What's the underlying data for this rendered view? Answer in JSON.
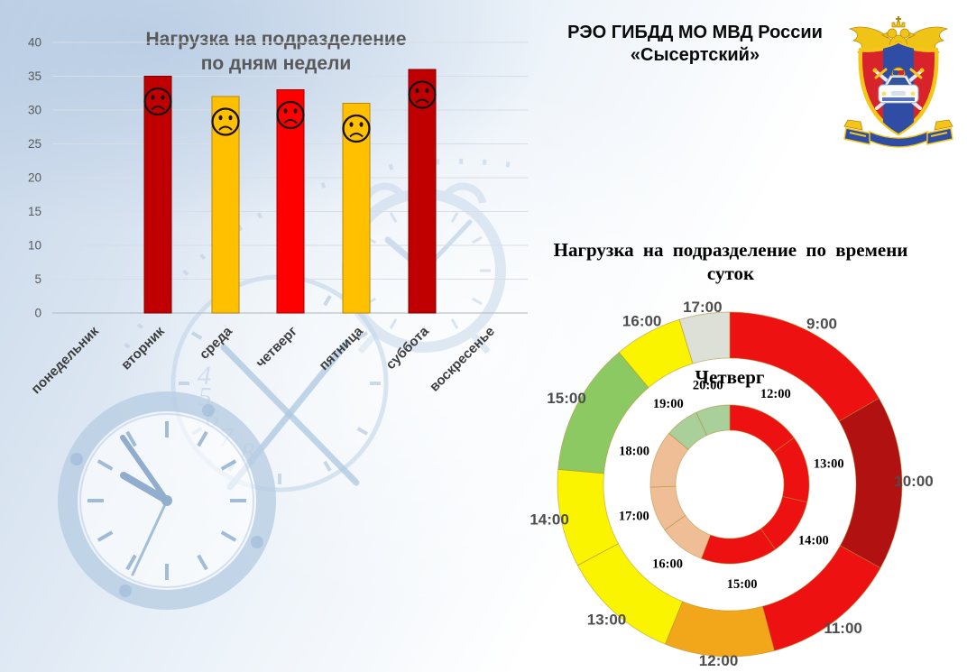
{
  "slide_header": {
    "title_lines": [
      "РЭО ГИБДД МО МВД России",
      "«Сысертский»"
    ],
    "emblem": "mvd-russia-gibdd-crest"
  },
  "chart_data": [
    {
      "id": "load-by-weekday",
      "type": "bar",
      "title": "Нагрузка на подразделение по дням недели",
      "title_lines": [
        "Нагрузка на подразделение",
        "по дням недели"
      ],
      "categories": [
        "понедельник",
        "вторник",
        "среда",
        "четверг",
        "пятница",
        "суббота",
        "воскресенье"
      ],
      "values": [
        0,
        35,
        32,
        33,
        31,
        36,
        0
      ],
      "bar_colors": [
        null,
        "#C00000",
        "#FFC000",
        "#FF0000",
        "#FFC000",
        "#C00000",
        null
      ],
      "marker_icon": "sad-face",
      "xlabel": "",
      "ylabel": "",
      "ylim": [
        0,
        40
      ],
      "ytick_step": 5,
      "yticks": [
        0,
        5,
        10,
        15,
        20,
        25,
        30,
        35,
        40
      ],
      "grid": true,
      "legend": null
    },
    {
      "id": "load-by-daytime",
      "type": "donut",
      "title": "Нагрузка на подразделение по времени суток",
      "title_lines": [
        "Нагрузка на подразделение по времени",
        "суток"
      ],
      "center_label": "Четверг",
      "units": "segment size = angular share of daily load (degrees)",
      "rings": [
        {
          "name": "all-days-by-hour",
          "position": "outer",
          "segments": [
            {
              "label": "9:00",
              "deg": 60,
              "color": "#EE1111"
            },
            {
              "label": "10:00",
              "deg": 59,
              "color": "#B21111"
            },
            {
              "label": "11:00",
              "deg": 46,
              "color": "#EE1111"
            },
            {
              "label": "12:00",
              "deg": 37,
              "color": "#F2A71B"
            },
            {
              "label": "13:00",
              "deg": 40,
              "color": "#FAF400"
            },
            {
              "label": "14:00",
              "deg": 33,
              "color": "#FAF400"
            },
            {
              "label": "15:00",
              "deg": 45,
              "color": "#8DC963"
            },
            {
              "label": "16:00",
              "deg": 23,
              "color": "#FAF400"
            },
            {
              "label": "17:00",
              "deg": 17,
              "color": "#DCE0D6"
            }
          ]
        },
        {
          "name": "thursday-by-hour",
          "position": "inner",
          "segments": [
            {
              "label": "12:00",
              "deg": 54,
              "color": "#EE1111"
            },
            {
              "label": "13:00",
              "deg": 49,
              "color": "#EE1111"
            },
            {
              "label": "14:00",
              "deg": 42,
              "color": "#EE1111"
            },
            {
              "label": "15:00",
              "deg": 56,
              "color": "#EE1111"
            },
            {
              "label": "16:00",
              "deg": 34,
              "color": "#F0BE96"
            },
            {
              "label": "17:00",
              "deg": 33,
              "color": "#F0BE96"
            },
            {
              "label": "18:00",
              "deg": 42,
              "color": "#F0BE96"
            },
            {
              "label": "19:00",
              "deg": 25,
              "color": "#A9CF9B"
            },
            {
              "label": "20:00",
              "deg": 25,
              "color": "#A9CF9B"
            }
          ]
        }
      ]
    }
  ],
  "watermark": {
    "description": "faint light-blue clocks in background",
    "icons": [
      "wall-clock",
      "pocket-watch",
      "alarm-clock"
    ]
  },
  "palette": {
    "slide_bg_top": "#C6D6E8",
    "slide_bg_bottom": "#FFFFFF",
    "bar_title_color": "#595959",
    "axis_label_color": "#595959",
    "outer_ring_label_color": "#4D4D4D",
    "inner_ring_label_color": "#000000"
  }
}
